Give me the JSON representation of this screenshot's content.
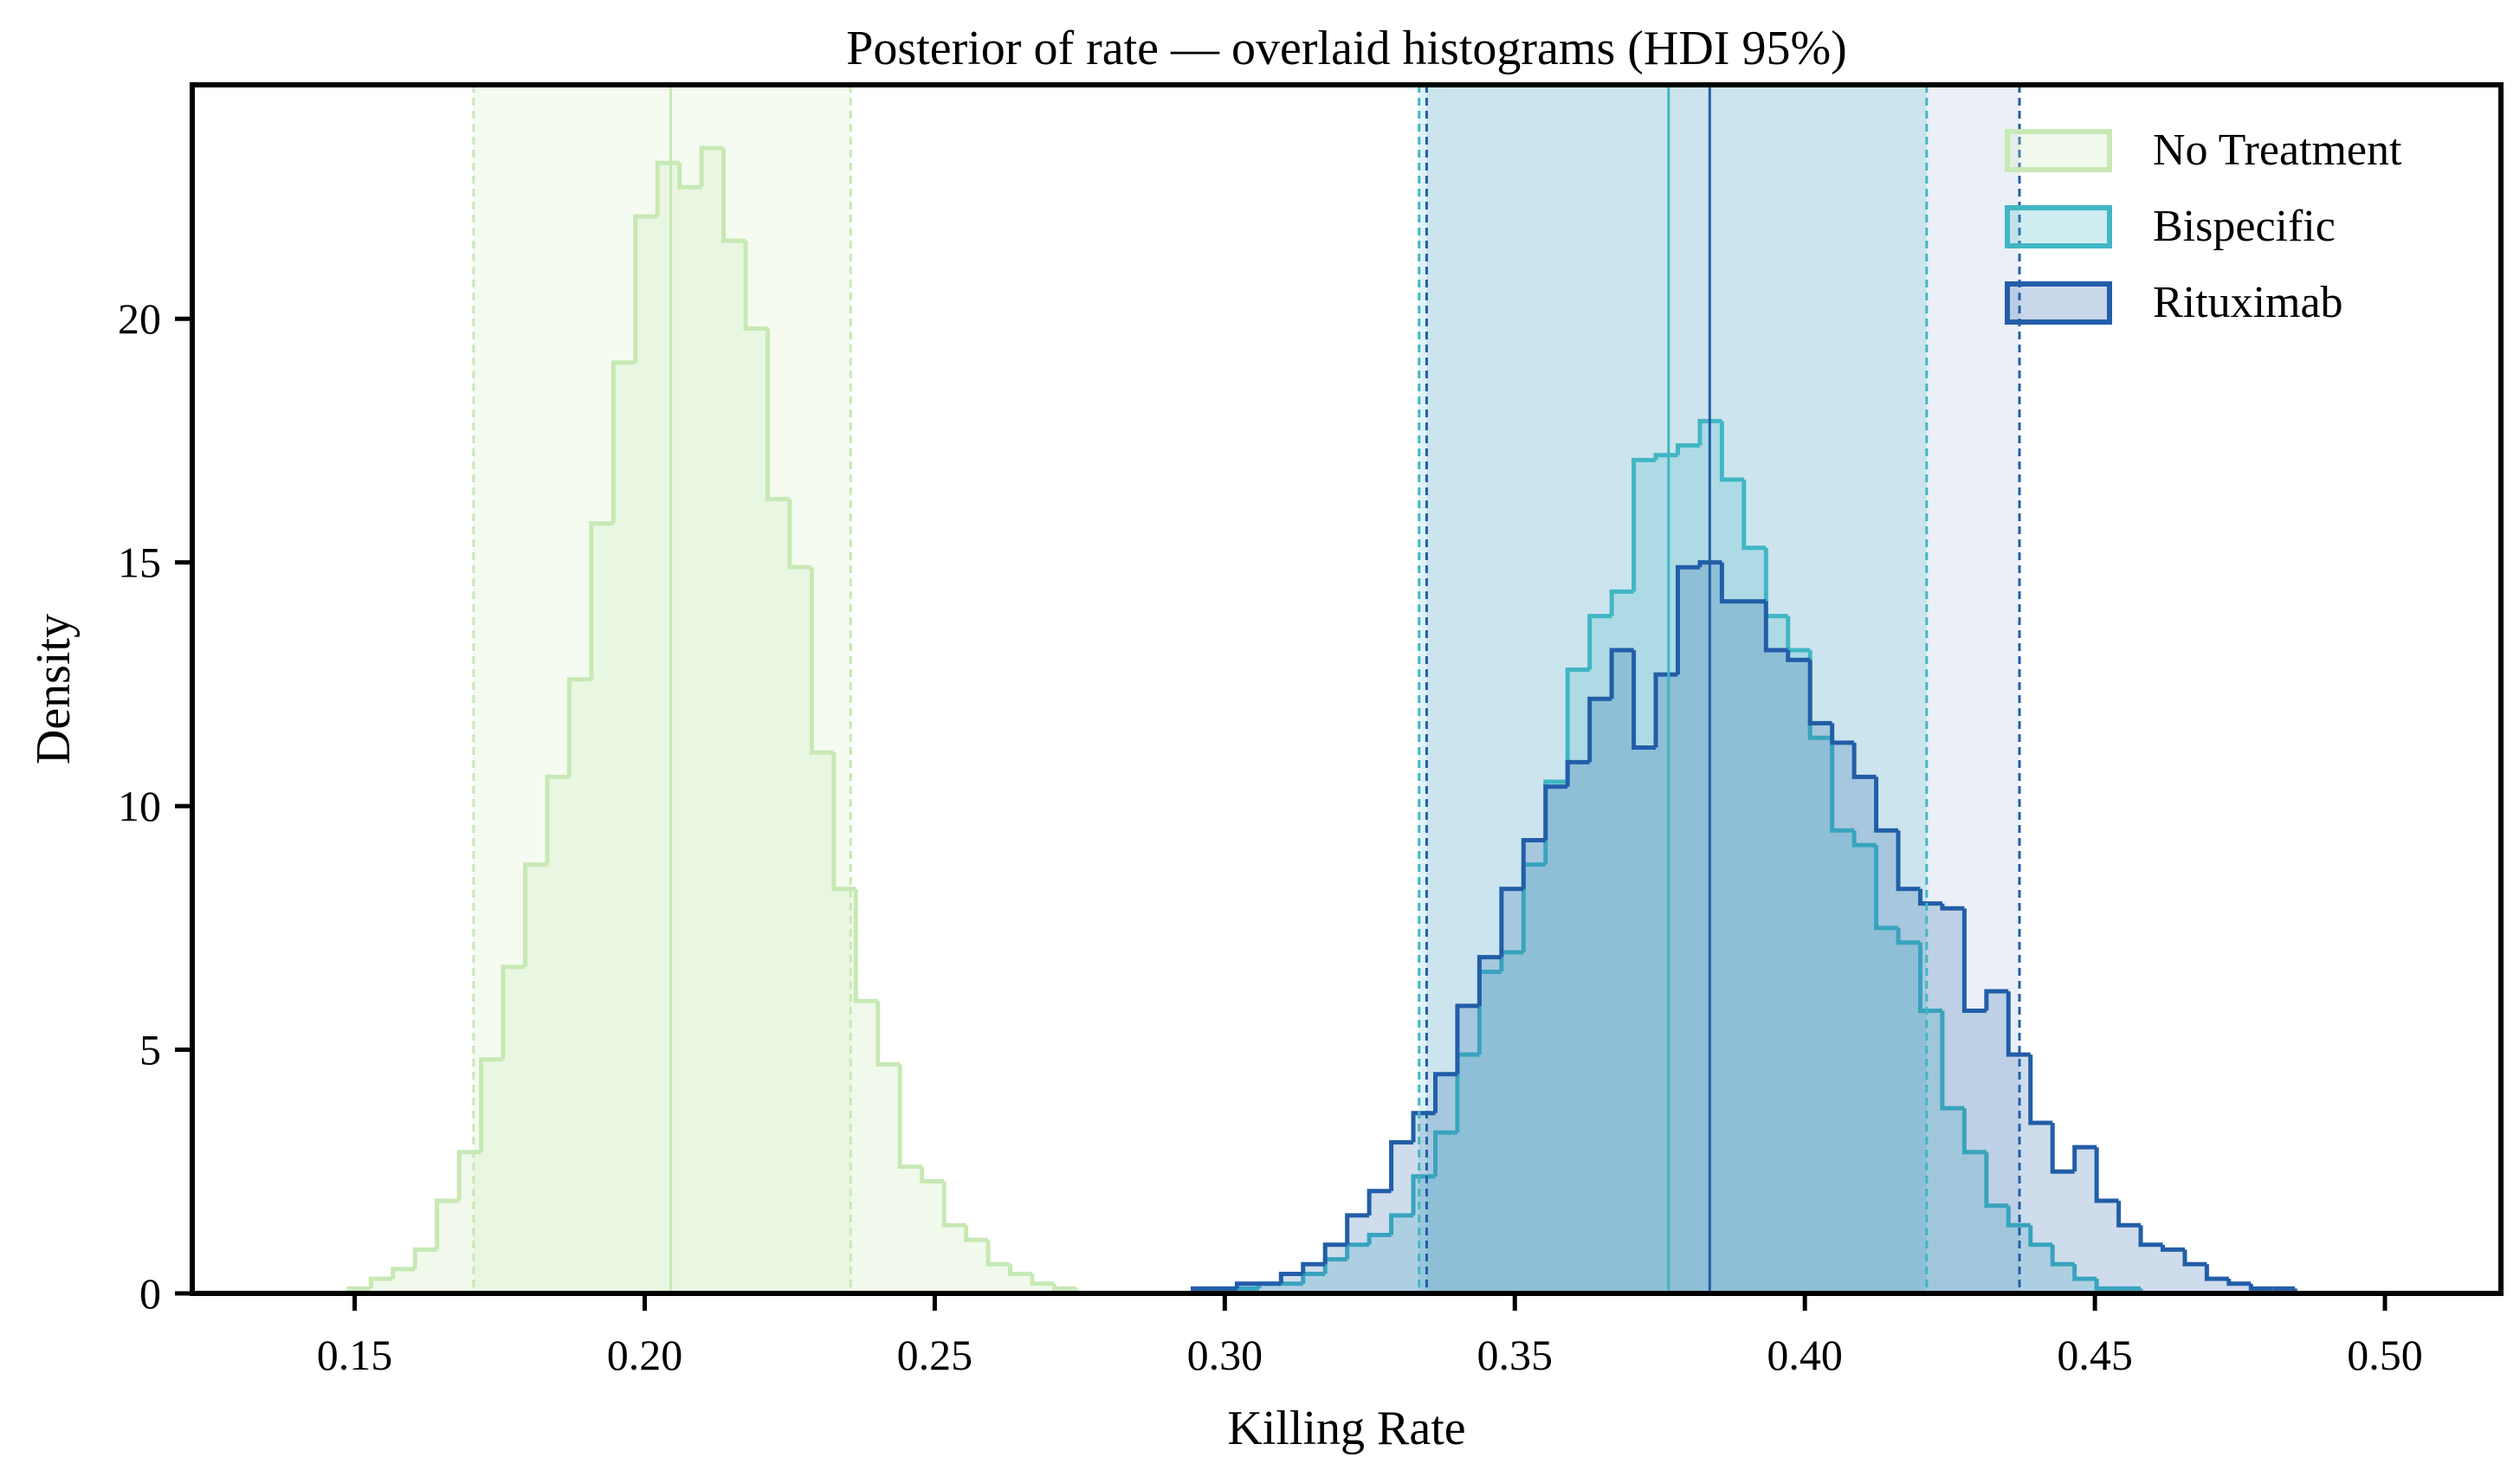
{
  "chart_data": {
    "type": "histogram",
    "title": "Posterior of rate — overlaid histograms (HDI 95%)",
    "xlabel": "Killing Rate",
    "ylabel": "Density",
    "xlim": [
      0.122,
      0.52
    ],
    "ylim": [
      0,
      24.8
    ],
    "x_ticks": [
      0.15,
      0.2,
      0.25,
      0.3,
      0.35,
      0.4,
      0.45,
      0.5
    ],
    "x_tick_labels": [
      "0.15",
      "0.20",
      "0.25",
      "0.30",
      "0.35",
      "0.40",
      "0.45",
      "0.50"
    ],
    "y_ticks": [
      0,
      5,
      10,
      15,
      20
    ],
    "y_tick_labels": [
      "0",
      "5",
      "10",
      "15",
      "20"
    ],
    "grid": false,
    "legend_position": "top-right",
    "series": [
      {
        "name": "No Treatment",
        "color": "#c7e9b4",
        "fill_opacity": 0.25,
        "band_opacity": 0.18,
        "bin_start": 0.149,
        "bin_width": 0.0038,
        "values": [
          0.1,
          0.3,
          0.5,
          0.9,
          1.9,
          2.9,
          4.8,
          6.7,
          8.8,
          10.6,
          12.6,
          15.8,
          19.1,
          22.1,
          23.2,
          22.7,
          23.5,
          21.6,
          19.8,
          16.3,
          14.9,
          11.1,
          8.3,
          6.0,
          4.7,
          2.6,
          2.3,
          1.4,
          1.1,
          0.6,
          0.4,
          0.2,
          0.1
        ],
        "hdi": [
          0.1705,
          0.2355
        ],
        "mean": 0.2045
      },
      {
        "name": "Bispecific",
        "color": "#41b6c4",
        "fill_opacity": 0.22,
        "band_opacity": 0.18,
        "bin_start": 0.2945,
        "bin_width": 0.0038,
        "values": [
          0.0,
          0.1,
          0.1,
          0.2,
          0.2,
          0.4,
          0.7,
          1.0,
          1.2,
          1.6,
          2.4,
          3.3,
          4.9,
          6.6,
          7.0,
          8.8,
          10.5,
          12.8,
          13.9,
          14.4,
          17.1,
          17.2,
          17.4,
          17.9,
          16.7,
          15.3,
          13.9,
          13.2,
          11.4,
          9.5,
          9.2,
          7.5,
          7.2,
          5.8,
          3.8,
          2.9,
          1.8,
          1.4,
          1.0,
          0.6,
          0.3,
          0.1,
          0.1,
          0.0
        ],
        "hdi": [
          0.3335,
          0.421
        ],
        "mean": 0.3765
      },
      {
        "name": "Rituximab",
        "color": "#225ea8",
        "fill_opacity": 0.22,
        "band_opacity": 0.09,
        "bin_start": 0.2945,
        "bin_width": 0.0038,
        "values": [
          0.1,
          0.1,
          0.2,
          0.2,
          0.4,
          0.6,
          1.0,
          1.6,
          2.1,
          3.1,
          3.7,
          4.5,
          5.9,
          6.9,
          8.3,
          9.3,
          10.4,
          10.9,
          12.2,
          13.2,
          11.2,
          12.7,
          14.9,
          15.0,
          14.2,
          14.2,
          13.2,
          13.0,
          11.7,
          11.3,
          10.6,
          9.5,
          8.3,
          8.0,
          7.9,
          5.8,
          6.2,
          4.9,
          3.5,
          2.5,
          3.0,
          1.9,
          1.4,
          1.0,
          0.9,
          0.6,
          0.3,
          0.2,
          0.1,
          0.1,
          0.0,
          0.0
        ],
        "hdi": [
          0.3348,
          0.437
        ],
        "mean": 0.3836
      }
    ]
  }
}
